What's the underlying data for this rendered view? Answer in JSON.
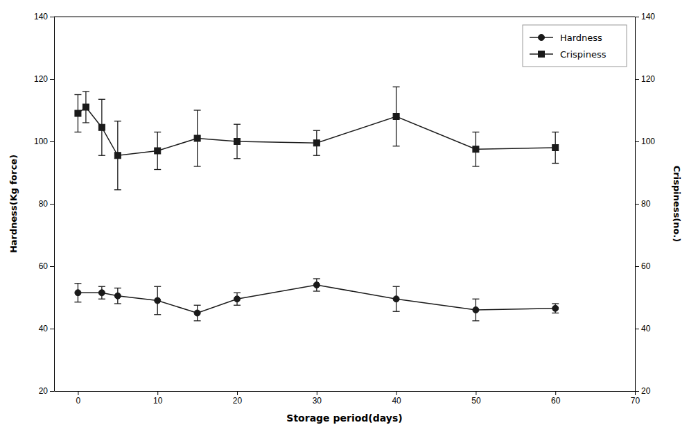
{
  "chart_data": {
    "type": "line",
    "xlabel": "Storage period(days)",
    "ylabel": "Hardness(Kg force)",
    "y2label": "Crispiness(no.)",
    "xlim": [
      -3,
      70
    ],
    "xticks": [
      0,
      10,
      20,
      30,
      40,
      50,
      60,
      70
    ],
    "ylim": [
      20,
      140
    ],
    "yticks": [
      20,
      40,
      60,
      80,
      100,
      120,
      140
    ],
    "y2lim": [
      20,
      140
    ],
    "y2ticks": [
      20,
      40,
      60,
      80,
      100,
      120,
      140
    ],
    "grid": false,
    "legend": "upper right",
    "series": [
      {
        "name": "Hardness",
        "color": "#1a1a1a",
        "marker": "circle",
        "x": [
          0,
          3,
          5,
          10,
          15,
          20,
          30,
          40,
          50,
          60
        ],
        "values": [
          51.5,
          51.5,
          50.5,
          49.0,
          45.0,
          49.5,
          54.0,
          49.5,
          46.0,
          46.5
        ],
        "errors": [
          3.0,
          2.0,
          2.5,
          4.5,
          2.5,
          2.0,
          2.0,
          4.0,
          3.5,
          1.5
        ]
      },
      {
        "name": "Crispiness",
        "color": "#1a1a1a",
        "marker": "square",
        "axis": "y2",
        "x": [
          0,
          1,
          3,
          5,
          10,
          15,
          20,
          30,
          40,
          50,
          60
        ],
        "values": [
          109.0,
          111.0,
          104.5,
          95.5,
          97.0,
          101.0,
          100.0,
          99.5,
          108.0,
          97.5,
          98.0
        ],
        "errors": [
          6.0,
          5.0,
          9.0,
          11.0,
          6.0,
          9.0,
          5.5,
          4.0,
          9.5,
          5.5,
          5.0
        ]
      }
    ]
  }
}
